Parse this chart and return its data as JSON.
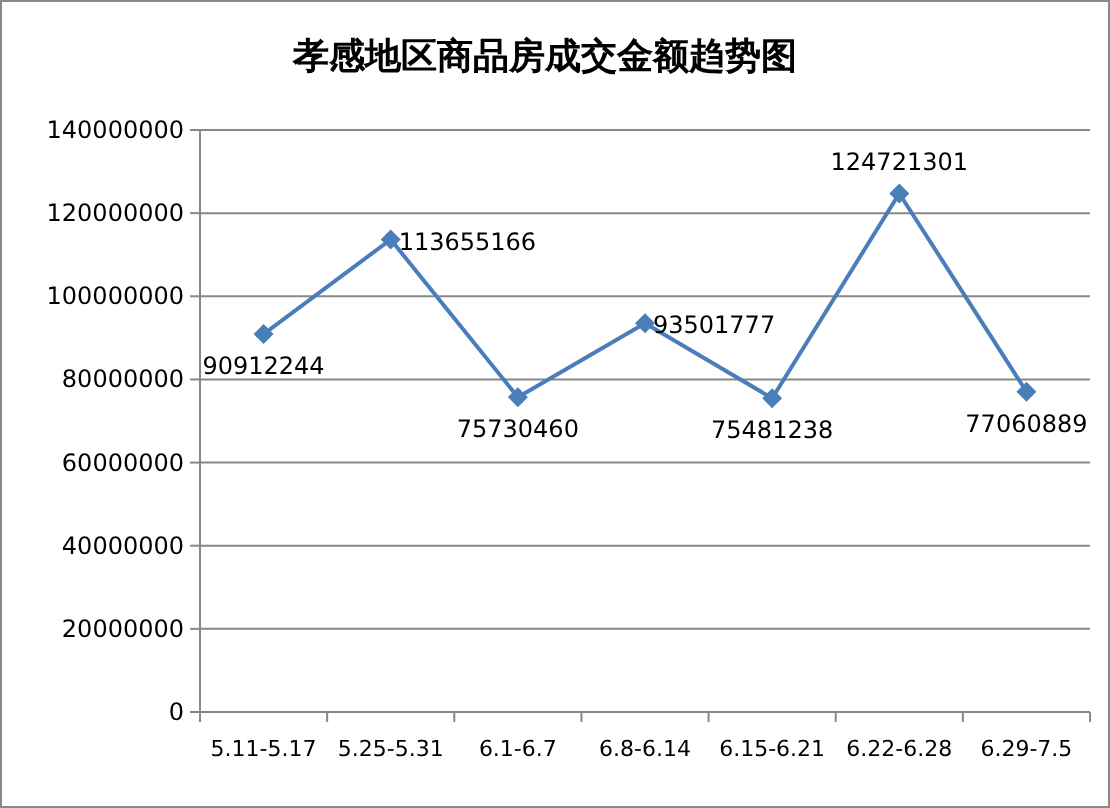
{
  "chart_data": {
    "type": "line",
    "title": "孝感地区商品房成交金额趋势图",
    "categories": [
      "5.11-5.17",
      "5.25-5.31",
      "6.1-6.7",
      "6.8-6.14",
      "6.15-6.21",
      "6.22-6.28",
      "6.29-7.5"
    ],
    "series": [
      {
        "color": "#4a7ebb",
        "values": [
          90912244,
          113655166,
          75730460,
          93501777,
          75481238,
          124721301,
          77060889
        ]
      }
    ],
    "ylim": [
      0,
      140000000
    ],
    "yticks": [
      0,
      20000000,
      40000000,
      60000000,
      80000000,
      100000000,
      120000000,
      140000000
    ],
    "grid": "y",
    "marker": "diamond",
    "line_style": "solid",
    "data_labels": true
  }
}
